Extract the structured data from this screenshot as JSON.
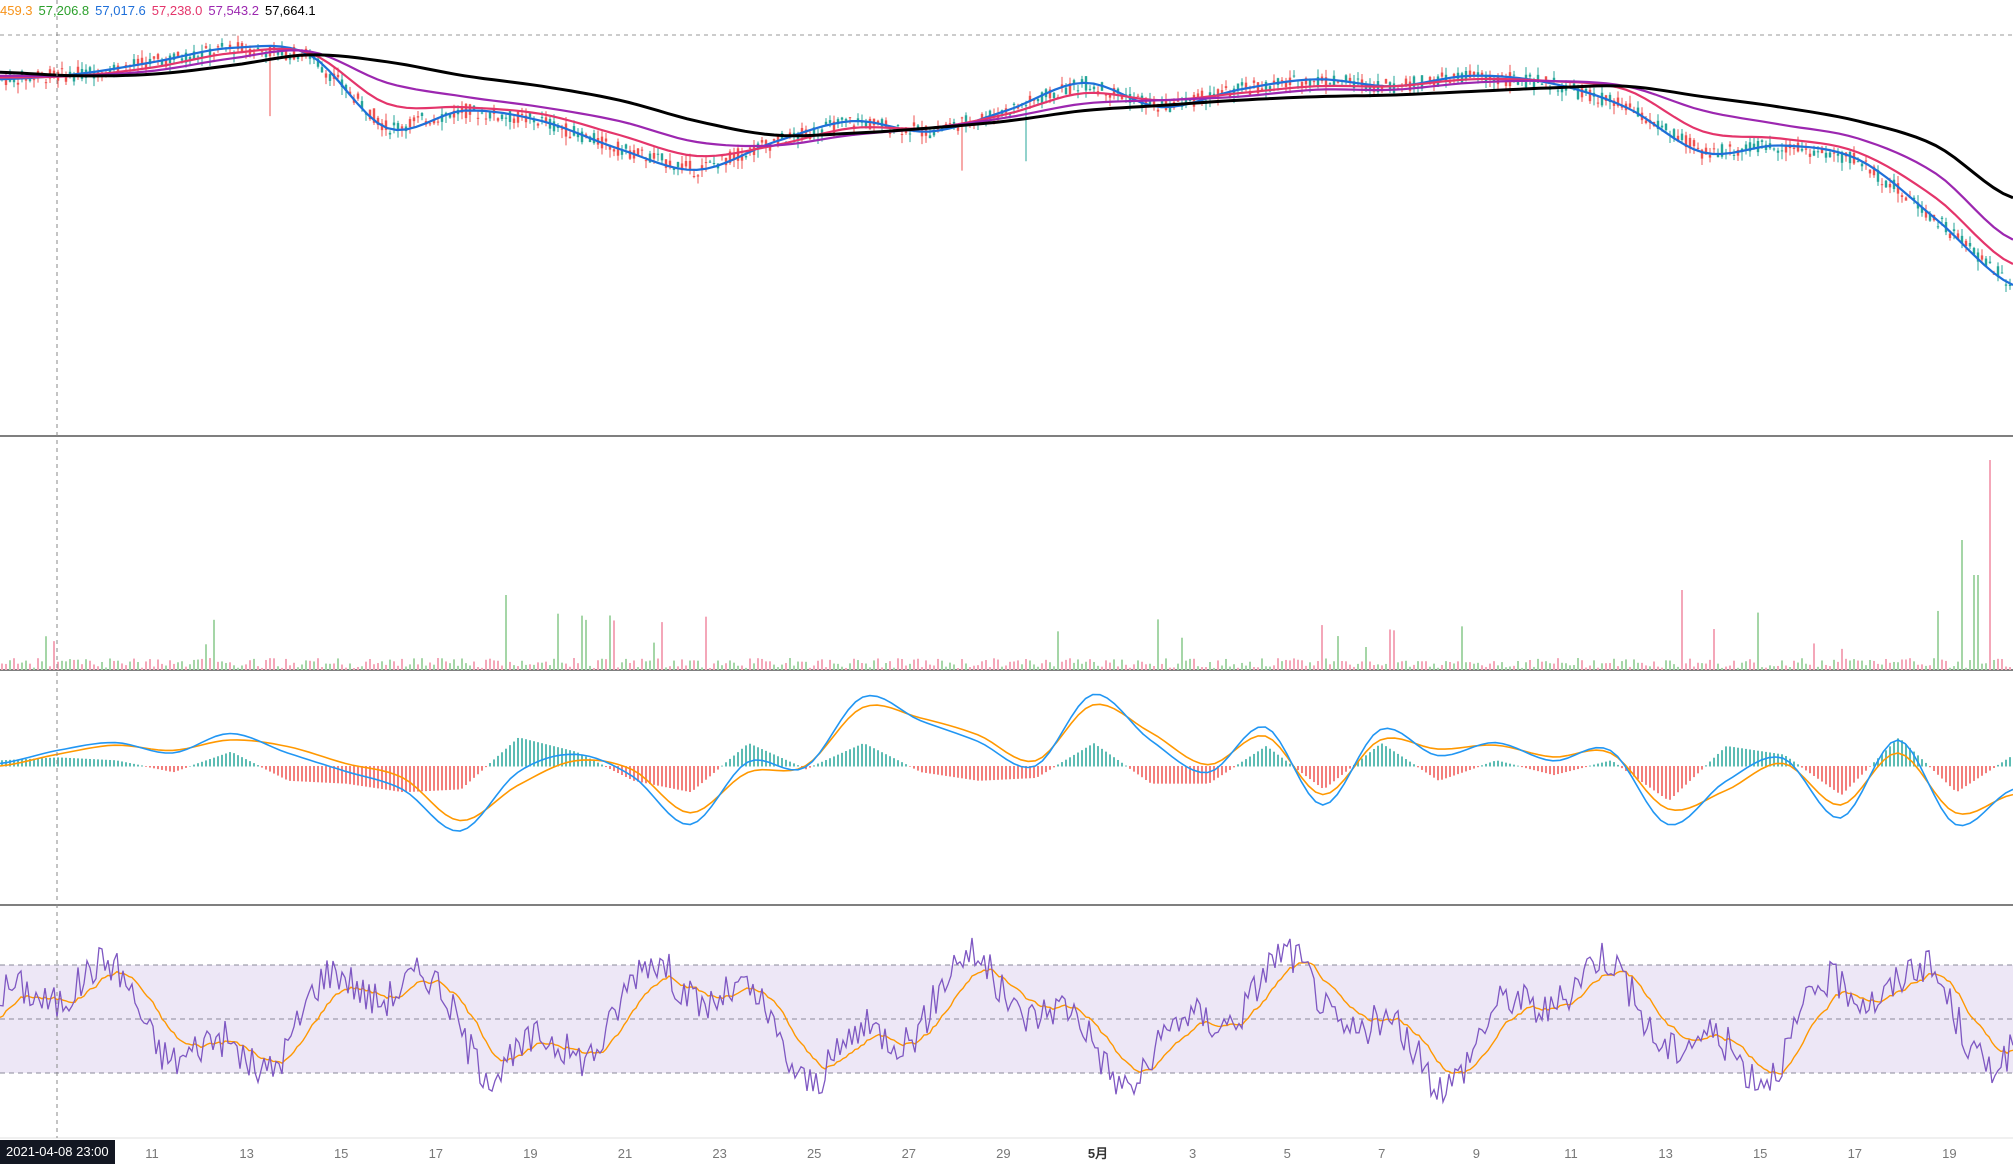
{
  "legend": {
    "values": [
      {
        "text": "459.3",
        "color": "#f7931a"
      },
      {
        "text": "57,206.8",
        "color": "#2ca02c"
      },
      {
        "text": "57,017.6",
        "color": "#1e6fd9"
      },
      {
        "text": "57,238.0",
        "color": "#e4356b"
      },
      {
        "text": "57,543.2",
        "color": "#9c27b0"
      },
      {
        "text": "57,664.1",
        "color": "#000000"
      }
    ]
  },
  "crosshair": {
    "date_label": "2021-04-08  23:00"
  },
  "x_axis": {
    "ticks": [
      "11",
      "13",
      "15",
      "17",
      "19",
      "21",
      "23",
      "25",
      "27",
      "29",
      "5月",
      "3",
      "5",
      "7",
      "9",
      "11",
      "13",
      "15",
      "17",
      "19"
    ],
    "highlight_tick": "5月"
  },
  "colors": {
    "up": "#26a69a",
    "down": "#ef5350",
    "volume_up": "#a5d6a7",
    "volume_down": "#f4a7b9",
    "macd_line": "#2196f3",
    "signal_line": "#ff9800",
    "rsi_line": "#7e57c2",
    "rsi_ma": "#ff9800",
    "rsi_band": "#ede7f6",
    "divider": "#333333",
    "axis_text": "#777777"
  },
  "chart_data": {
    "type": "line",
    "title": "",
    "price_moving_averages": [
      {
        "name": "",
        "color": "#1e6fd9",
        "values": [
          57200,
          57350,
          57700,
          58100,
          57900,
          55800,
          56300,
          56000,
          55200,
          54600,
          55400,
          56000,
          55700,
          56300,
          57100,
          56400,
          56900,
          57200,
          57000,
          57300,
          57100,
          56400,
          55100,
          55300,
          54900,
          53200,
          51300
        ]
      },
      {
        "name": "",
        "color": "#e4356b",
        "values": [
          57250,
          57300,
          57550,
          57950,
          57950,
          56500,
          56400,
          56200,
          55600,
          55000,
          55300,
          55800,
          55800,
          56200,
          56800,
          56600,
          56800,
          57000,
          57000,
          57200,
          57150,
          56900,
          55700,
          55500,
          55100,
          53800,
          51900
        ]
      },
      {
        "name": "",
        "color": "#9c27b0",
        "values": [
          57300,
          57300,
          57450,
          57800,
          58000,
          57100,
          56700,
          56400,
          56000,
          55400,
          55300,
          55600,
          55800,
          56100,
          56500,
          56600,
          56700,
          56900,
          56900,
          57100,
          57150,
          57000,
          56300,
          55900,
          55500,
          54500,
          52600
        ]
      },
      {
        "name": "",
        "color": "#000000",
        "values": [
          57400,
          57300,
          57350,
          57600,
          57900,
          57700,
          57300,
          57000,
          56600,
          56000,
          55600,
          55650,
          55800,
          56000,
          56300,
          56450,
          56600,
          56700,
          56750,
          56850,
          56950,
          57000,
          56700,
          56400,
          56000,
          55300,
          53800
        ]
      }
    ],
    "macd": {
      "macd_line": [
        0.2,
        1.2,
        1.8,
        1.0,
        2.5,
        1.0,
        -0.4,
        -1.8,
        -5.0,
        -0.5,
        0.9,
        -0.8,
        -4.5,
        0.3,
        -0.1,
        5.3,
        3.5,
        1.9,
        0.0,
        5.5,
        2.0,
        -0.5,
        3.0,
        -3.0,
        2.8,
        0.8,
        1.8,
        0.4,
        1.2,
        -4.5,
        -1.2,
        0.6,
        -4.0,
        2.0,
        -4.5,
        -1.8
      ],
      "signal_line": [
        0.0,
        0.9,
        1.6,
        1.2,
        2.0,
        1.5,
        0.2,
        -0.9,
        -4.2,
        -1.5,
        0.4,
        -0.3,
        -3.6,
        -0.5,
        0.0,
        4.5,
        3.7,
        2.4,
        0.4,
        4.7,
        2.6,
        0.1,
        2.3,
        -2.2,
        2.0,
        1.3,
        1.6,
        0.7,
        1.0,
        -3.3,
        -1.9,
        0.2,
        -3.0,
        1.0,
        -3.6,
        -2.2
      ]
    },
    "rsi": {
      "upper": 70,
      "middle": 50,
      "lower": 30
    }
  }
}
